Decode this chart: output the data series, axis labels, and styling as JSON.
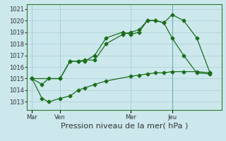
{
  "background_color": "#cce8ec",
  "grid_color": "#aacdd4",
  "line_color": "#1a6e1a",
  "title": "Pression niveau de la mer( hPa )",
  "ylim": [
    1012.3,
    1021.4
  ],
  "yticks": [
    1013,
    1014,
    1015,
    1016,
    1017,
    1018,
    1019,
    1020,
    1021
  ],
  "day_labels": [
    "Mar",
    "Ven",
    "Mer",
    "Jeu"
  ],
  "day_positions": [
    0,
    17,
    60,
    85
  ],
  "xlim": [
    -3,
    115
  ],
  "line1_x": [
    0,
    6,
    10,
    17,
    23,
    28,
    32,
    38,
    45,
    60,
    65,
    70,
    75,
    80,
    85,
    92,
    100,
    108
  ],
  "line1_y": [
    1015.0,
    1013.3,
    1013.0,
    1013.3,
    1013.5,
    1014.0,
    1014.2,
    1014.5,
    1014.8,
    1015.2,
    1015.3,
    1015.4,
    1015.5,
    1015.5,
    1015.6,
    1015.6,
    1015.6,
    1015.5
  ],
  "line2_x": [
    0,
    17,
    23,
    28,
    32,
    38,
    45,
    55,
    60,
    65,
    70,
    75,
    80,
    85,
    92,
    100,
    108
  ],
  "line2_y": [
    1015.0,
    1015.0,
    1016.5,
    1016.5,
    1016.6,
    1016.6,
    1018.0,
    1018.8,
    1019.0,
    1019.2,
    1020.0,
    1020.0,
    1019.8,
    1020.5,
    1020.0,
    1018.5,
    1015.5
  ],
  "line3_x": [
    0,
    6,
    10,
    17,
    23,
    28,
    32,
    38,
    45,
    55,
    60,
    65,
    70,
    75,
    80,
    85,
    92,
    100,
    108
  ],
  "line3_y": [
    1015.0,
    1014.5,
    1015.0,
    1015.0,
    1016.5,
    1016.5,
    1016.5,
    1017.0,
    1018.5,
    1019.0,
    1018.8,
    1019.0,
    1020.0,
    1020.0,
    1019.8,
    1018.5,
    1017.0,
    1015.5,
    1015.4
  ],
  "vline_pos": 85,
  "marker_size": 2.5,
  "linewidth": 0.9,
  "tick_fontsize": 6,
  "xlabel_fontsize": 8
}
